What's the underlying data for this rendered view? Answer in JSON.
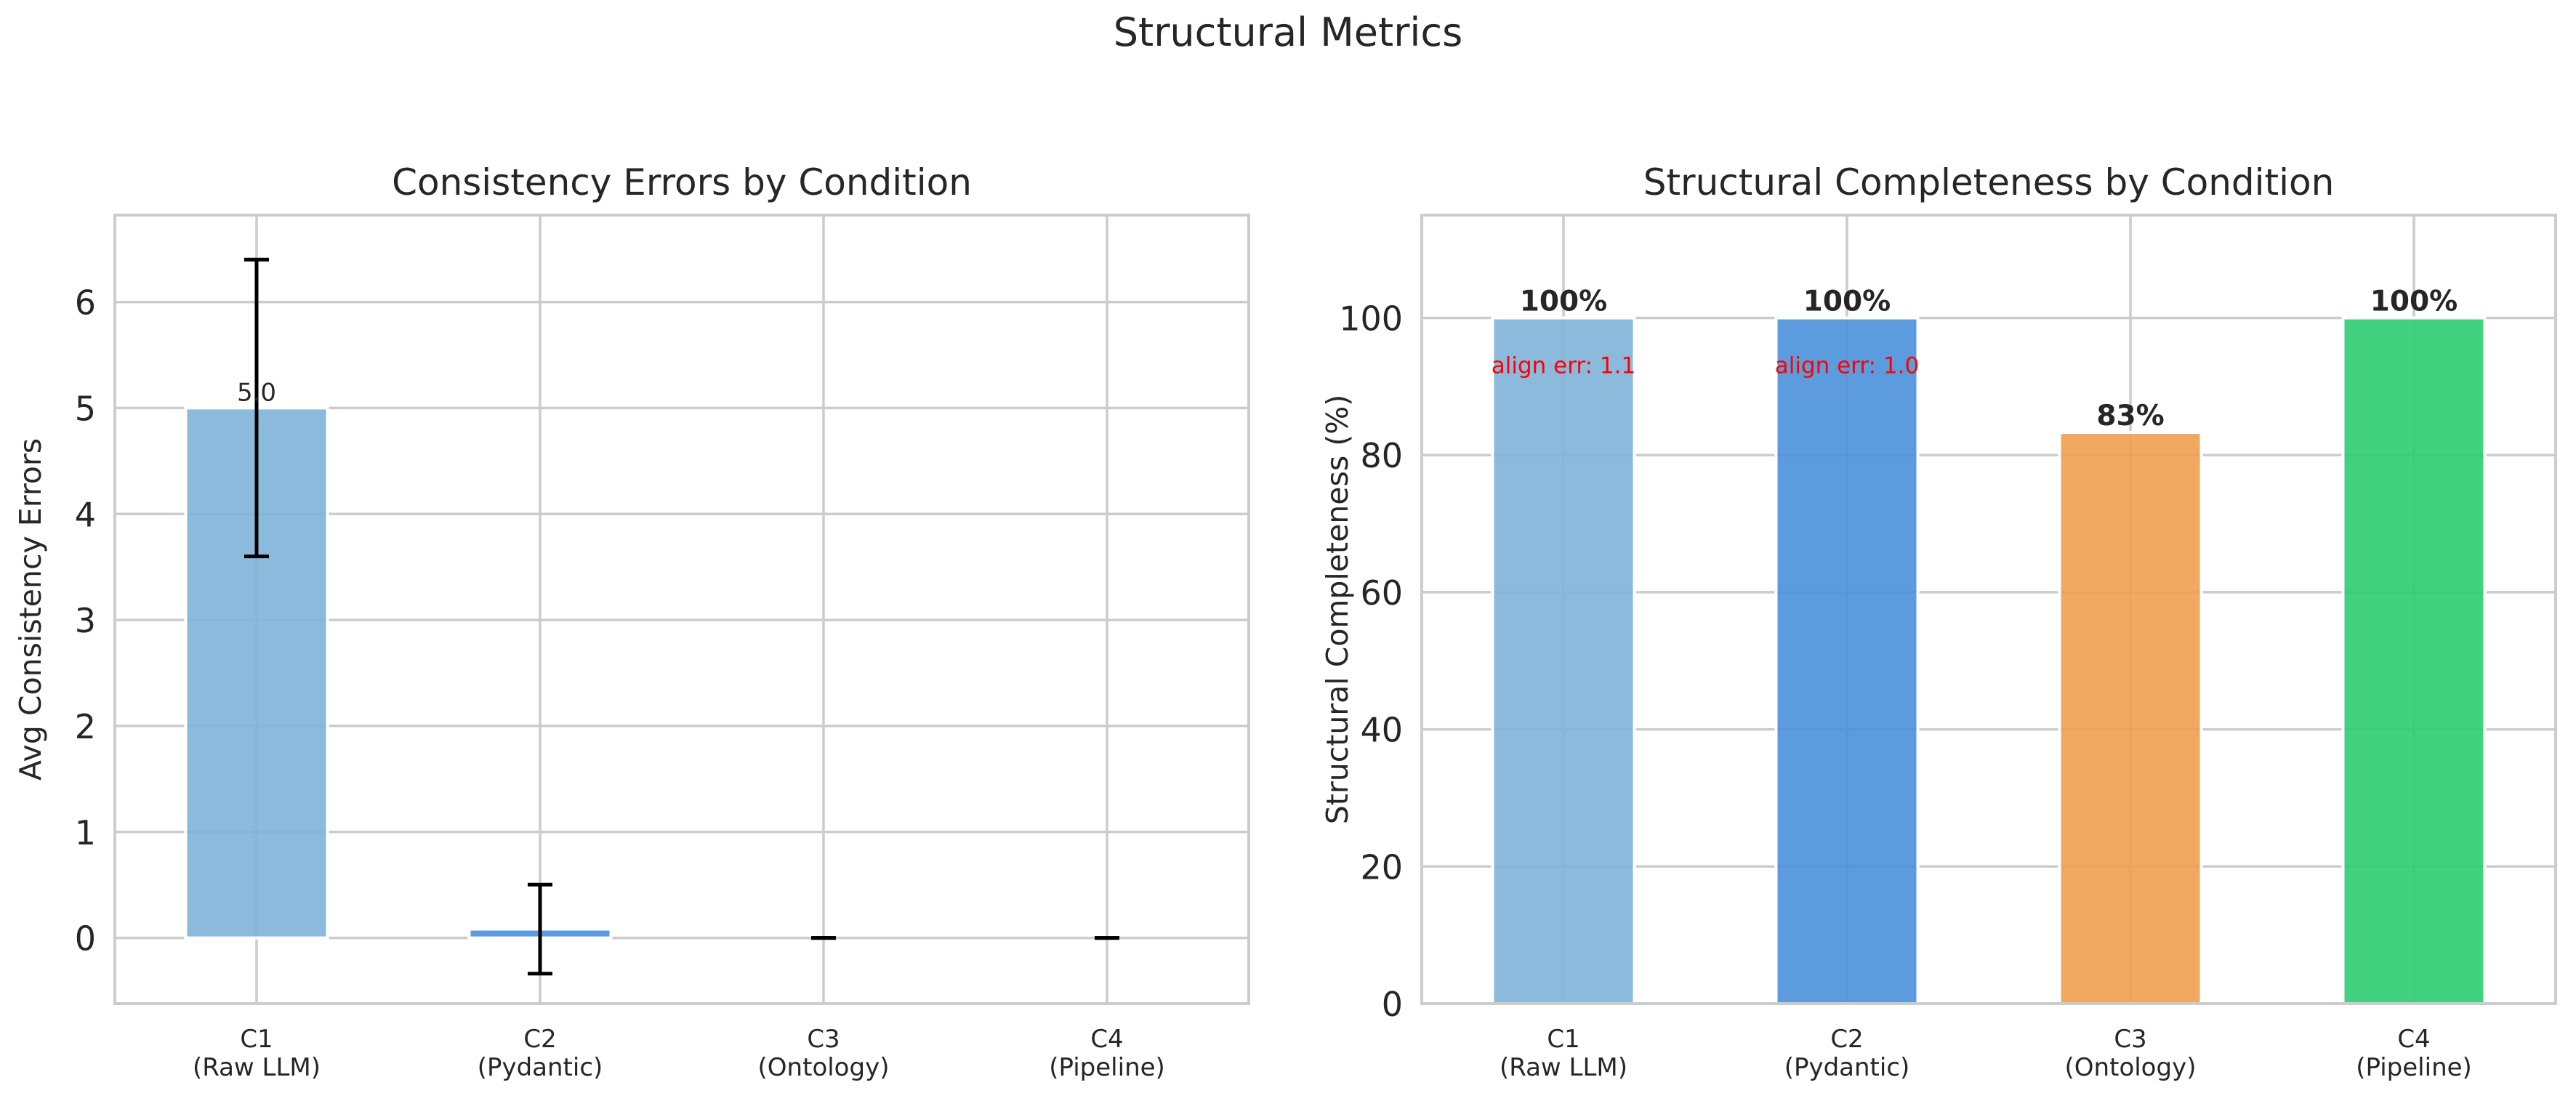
{
  "suptitle": "Structural Metrics",
  "colors": {
    "c1": "#7fb2d8",
    "c2": "#4a90d9",
    "c3": "#f0a050",
    "c4": "#2ecc71",
    "annotation": "#ff0000",
    "grid": "#cccccc",
    "text": "#262626"
  },
  "chart_data": [
    {
      "type": "bar",
      "title": "Consistency Errors by Condition",
      "xlabel": "",
      "ylabel": "Avg Consistency Errors",
      "categories": [
        "C1\n(Raw LLM)",
        "C2\n(Pydantic)",
        "C3\n(Ontology)",
        "C4\n(Pipeline)"
      ],
      "values": [
        5.0,
        0.083,
        0.0,
        0.0
      ],
      "error": [
        1.4,
        0.42,
        0.0,
        0.0
      ],
      "bar_labels": [
        "5.0",
        "",
        "",
        ""
      ],
      "ylim": [
        -0.62,
        6.82
      ],
      "yticks": [
        0,
        1,
        2,
        3,
        4,
        5,
        6
      ],
      "grid": true
    },
    {
      "type": "bar",
      "title": "Structural Completeness by Condition",
      "xlabel": "",
      "ylabel": "Structural Completeness (%)",
      "categories": [
        "C1\n(Raw LLM)",
        "C2\n(Pydantic)",
        "C3\n(Ontology)",
        "C4\n(Pipeline)"
      ],
      "values": [
        100,
        100,
        83.3,
        100
      ],
      "bar_labels": [
        "100%",
        "100%",
        "83%",
        "100%"
      ],
      "annotations": [
        "align err: 1.1",
        "align err: 1.0",
        "",
        ""
      ],
      "ylim": [
        0,
        115
      ],
      "yticks": [
        0,
        20,
        40,
        60,
        80,
        100
      ],
      "grid": true
    }
  ]
}
